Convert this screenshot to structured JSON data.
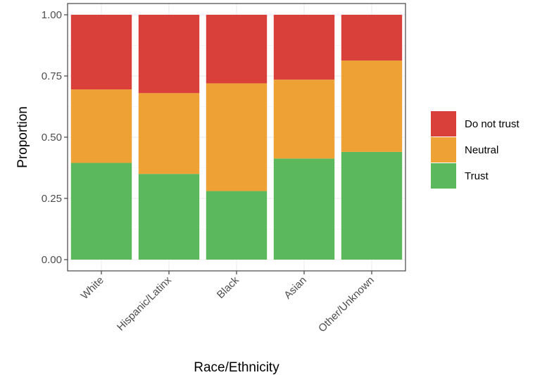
{
  "chart_data": {
    "type": "bar",
    "stacked": true,
    "xlabel": "Race/Ethnicity",
    "ylabel": "Proportion",
    "ylim": [
      0,
      1
    ],
    "yticks": [
      "0.00",
      "0.25",
      "0.50",
      "0.75",
      "1.00"
    ],
    "categories": [
      "White",
      "Hispanic/Latinx",
      "Black",
      "Asian",
      "Other/Unknown"
    ],
    "series": [
      {
        "name": "Trust",
        "color": "#5cb85c",
        "values": [
          0.395,
          0.35,
          0.28,
          0.413,
          0.44
        ]
      },
      {
        "name": "Neutral",
        "color": "#eea236",
        "values": [
          0.3,
          0.33,
          0.44,
          0.322,
          0.373
        ]
      },
      {
        "name": "Do not trust",
        "color": "#d9403a",
        "values": [
          0.305,
          0.32,
          0.28,
          0.265,
          0.187
        ]
      }
    ],
    "legend": {
      "position": "right",
      "order": [
        "Do not trust",
        "Neutral",
        "Trust"
      ]
    },
    "grid": true
  }
}
